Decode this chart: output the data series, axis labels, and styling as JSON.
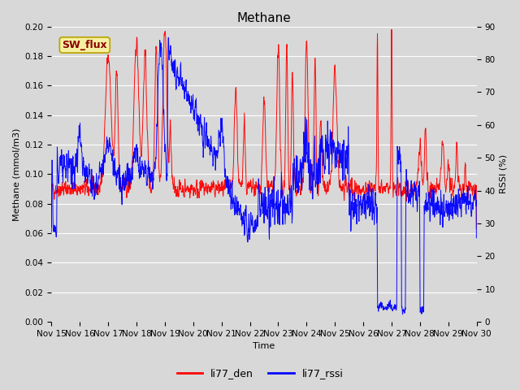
{
  "title": "Methane",
  "ylabel_left": "Methane (mmol/m3)",
  "ylabel_right": "RSSI (%)",
  "xlabel": "Time",
  "annotation": "SW_flux",
  "legend": [
    "li77_den",
    "li77_rssi"
  ],
  "legend_colors": [
    "red",
    "blue"
  ],
  "ylim_left": [
    0.0,
    0.2
  ],
  "ylim_right": [
    0,
    90
  ],
  "yticks_left": [
    0.0,
    0.02,
    0.04,
    0.06,
    0.08,
    0.1,
    0.12,
    0.14,
    0.16,
    0.18,
    0.2
  ],
  "yticks_right": [
    0,
    10,
    20,
    30,
    40,
    50,
    60,
    70,
    80,
    90
  ],
  "background_color": "#d8d8d8",
  "plot_bg_color": "#d8d8d8",
  "grid_color": "#ffffff",
  "title_fontsize": 11,
  "label_fontsize": 8,
  "tick_fontsize": 7.5
}
